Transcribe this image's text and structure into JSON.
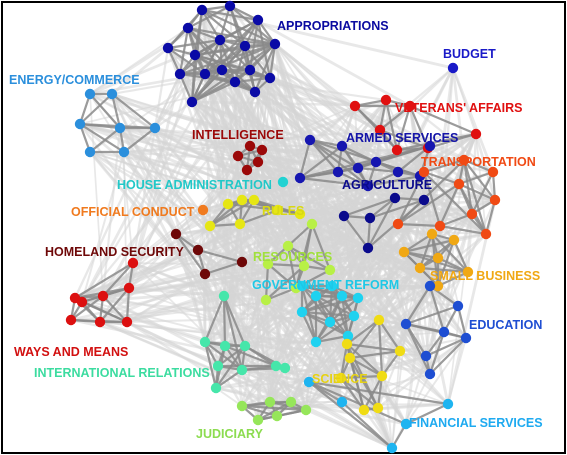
{
  "groups": [
    {
      "key": "appropriations",
      "label": "APPROPRIATIONS",
      "color": "#0a0aa6"
    },
    {
      "key": "budget",
      "label": "BUDGET",
      "color": "#1a1ac8"
    },
    {
      "key": "energy",
      "label": "ENERGY/COMMERCE",
      "color": "#2b8fdc"
    },
    {
      "key": "veterans",
      "label": "VETERANS' AFFAIRS",
      "color": "#e01010"
    },
    {
      "key": "intelligence",
      "label": "INTELLIGENCE",
      "color": "#9b0808"
    },
    {
      "key": "armed",
      "label": "ARMED SERVICES",
      "color": "#1616b0"
    },
    {
      "key": "transportation",
      "label": "TRANSPORTATION",
      "color": "#f04a14"
    },
    {
      "key": "house_admin",
      "label": "HOUSE ADMINISTRATION",
      "color": "#22d2d2"
    },
    {
      "key": "agriculture",
      "label": "AGRICULTURE",
      "color": "#0a0a8c"
    },
    {
      "key": "official_conduct",
      "label": "OFFICIAL CONDUCT",
      "color": "#f07a1e"
    },
    {
      "key": "rules",
      "label": "RULES",
      "color": "#e6e614"
    },
    {
      "key": "homeland",
      "label": "HOMELAND SECURITY",
      "color": "#6e0808"
    },
    {
      "key": "resources",
      "label": "RESOURCES",
      "color": "#b8f046"
    },
    {
      "key": "small_business",
      "label": "SMALL BUSINESS",
      "color": "#f0a814"
    },
    {
      "key": "gov_reform",
      "label": "GOVERNMENT REFORM",
      "color": "#1ed2f0"
    },
    {
      "key": "education",
      "label": "EDUCATION",
      "color": "#1e4ed2"
    },
    {
      "key": "ways_means",
      "label": "WAYS AND MEANS",
      "color": "#dc1010"
    },
    {
      "key": "international",
      "label": "INTERNATIONAL RELATIONS",
      "color": "#46e6aa"
    },
    {
      "key": "science",
      "label": "SCIENCE",
      "color": "#f0dc14"
    },
    {
      "key": "judiciary",
      "label": "JUDICIARY",
      "color": "#96e65a"
    },
    {
      "key": "financial",
      "label": "FINANCIAL SERVICES",
      "color": "#1eb4f0"
    }
  ],
  "label_colors": {
    "appropriations": "#0a0aa0",
    "budget": "#1a1ac8",
    "energy": "#2b8fdc",
    "veterans": "#e01010",
    "intelligence": "#9b0808",
    "armed": "#1414a8",
    "transportation": "#f04a14",
    "house_admin": "#22c8c8",
    "agriculture": "#0a0a8c",
    "official_conduct": "#f07a1e",
    "rules": "#d8d814",
    "homeland": "#6e0808",
    "resources": "#a0e03c",
    "small_business": "#f0a814",
    "gov_reform": "#1ec8e6",
    "education": "#1e4ed2",
    "ways_means": "#d21010",
    "international": "#3cdca0",
    "science": "#e6d214",
    "judiciary": "#8cdc50",
    "financial": "#1eaaf0"
  },
  "edge_color_strong": "#8a8a8a",
  "edge_color_weak": "#d6d6d6"
}
